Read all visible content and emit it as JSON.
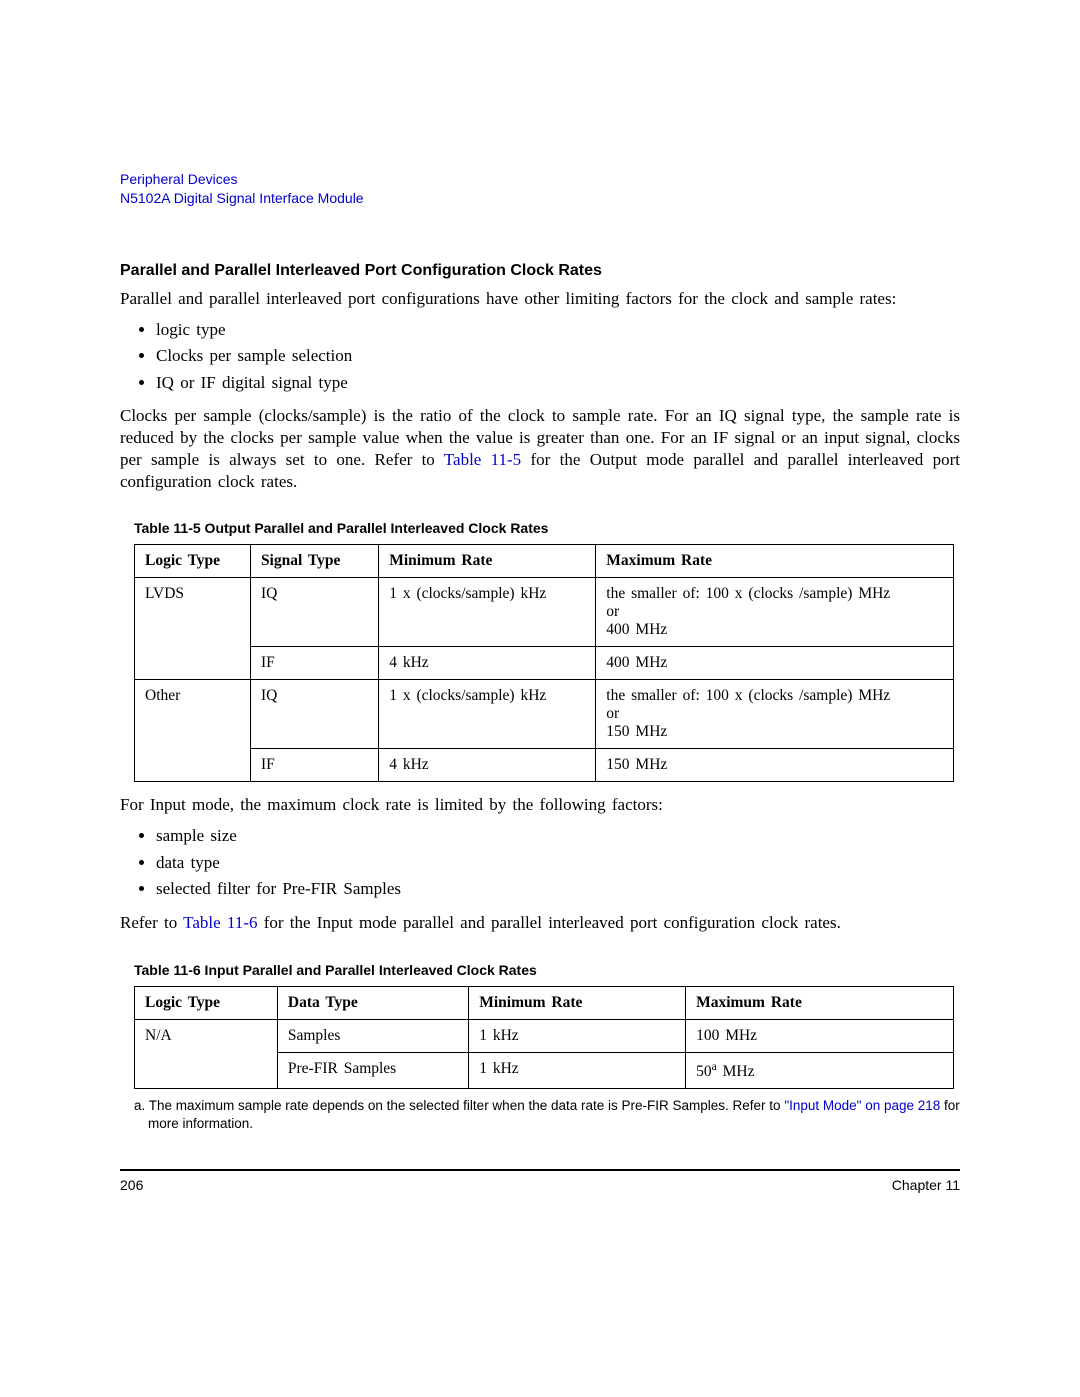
{
  "header": {
    "line1": "Peripheral Devices",
    "line2": "N5102A Digital Signal Interface Module"
  },
  "section_heading": "Parallel and Parallel Interleaved Port Configuration Clock Rates",
  "intro_para": "Parallel and parallel interleaved port configurations have other limiting factors for the clock and sample rates:",
  "bullets1": {
    "b0": "logic type",
    "b1": "Clocks per sample selection",
    "b2": "IQ or IF digital signal type"
  },
  "clocks_para": {
    "pre": "Clocks per sample (clocks/sample) is the ratio of the clock to sample rate. For an IQ signal type, the sample rate is reduced by the clocks per sample value when the value is greater than one. For an IF signal or an input signal, clocks per sample is always set to one. Refer to ",
    "xref": "Table 11-5",
    "post": " for the Output mode parallel and parallel interleaved port configuration clock rates."
  },
  "table5": {
    "caption": "Table 11-5  Output Parallel and Parallel Interleaved Clock Rates",
    "head": {
      "c1": "Logic Type",
      "c2": "Signal Type",
      "c3": "Minimum Rate",
      "c4": "Maximum Rate"
    },
    "rows": {
      "r0": {
        "c1": "LVDS",
        "c2": "IQ",
        "c3": "1 x (clocks/sample) kHz",
        "c4": "the smaller of: 100 x (clocks /sample) MHz\nor\n400 MHz"
      },
      "r1": {
        "c1": "",
        "c2": "IF",
        "c3": "4 kHz",
        "c4": "400 MHz"
      },
      "r2": {
        "c1": "Other",
        "c2": "IQ",
        "c3": "1 x (clocks/sample) kHz",
        "c4": "the smaller of: 100 x (clocks /sample) MHz\nor\n150 MHz"
      },
      "r3": {
        "c1": "",
        "c2": "IF",
        "c3": "4 kHz",
        "c4": "150 MHz"
      }
    }
  },
  "input_para": "For Input mode, the maximum clock rate is limited by the following factors:",
  "bullets2": {
    "b0": "sample size",
    "b1": "data type",
    "b2": "selected filter for Pre-FIR Samples"
  },
  "refer_para": {
    "pre": "Refer to ",
    "xref": "Table 11-6",
    "post": " for the Input mode parallel and parallel interleaved port configuration clock rates."
  },
  "table6": {
    "caption": "Table 11-6  Input Parallel and Parallel Interleaved Clock Rates",
    "head": {
      "c1": "Logic Type",
      "c2": "Data Type",
      "c3": "Minimum Rate",
      "c4": "Maximum Rate"
    },
    "rows": {
      "r0": {
        "c1": "N/A",
        "c2": "Samples",
        "c3": "1 kHz",
        "c4": "100 MHz"
      },
      "r1": {
        "c1": "",
        "c2": "Pre-FIR Samples",
        "c3": "1 kHz",
        "c4_pre": "50",
        "c4_sup": "a",
        "c4_post": " MHz"
      }
    }
  },
  "footnote": {
    "pre": "a. The maximum sample rate depends on the selected filter when the data rate is Pre-FIR Samples. Refer to ",
    "xref": "\"Input Mode\" on page 218",
    "post": " for more information."
  },
  "footer": {
    "page_num": "206",
    "chapter": "Chapter 11"
  },
  "colors": {
    "link": "#0000cc",
    "text": "#000000",
    "background": "#ffffff",
    "border": "#000000"
  }
}
